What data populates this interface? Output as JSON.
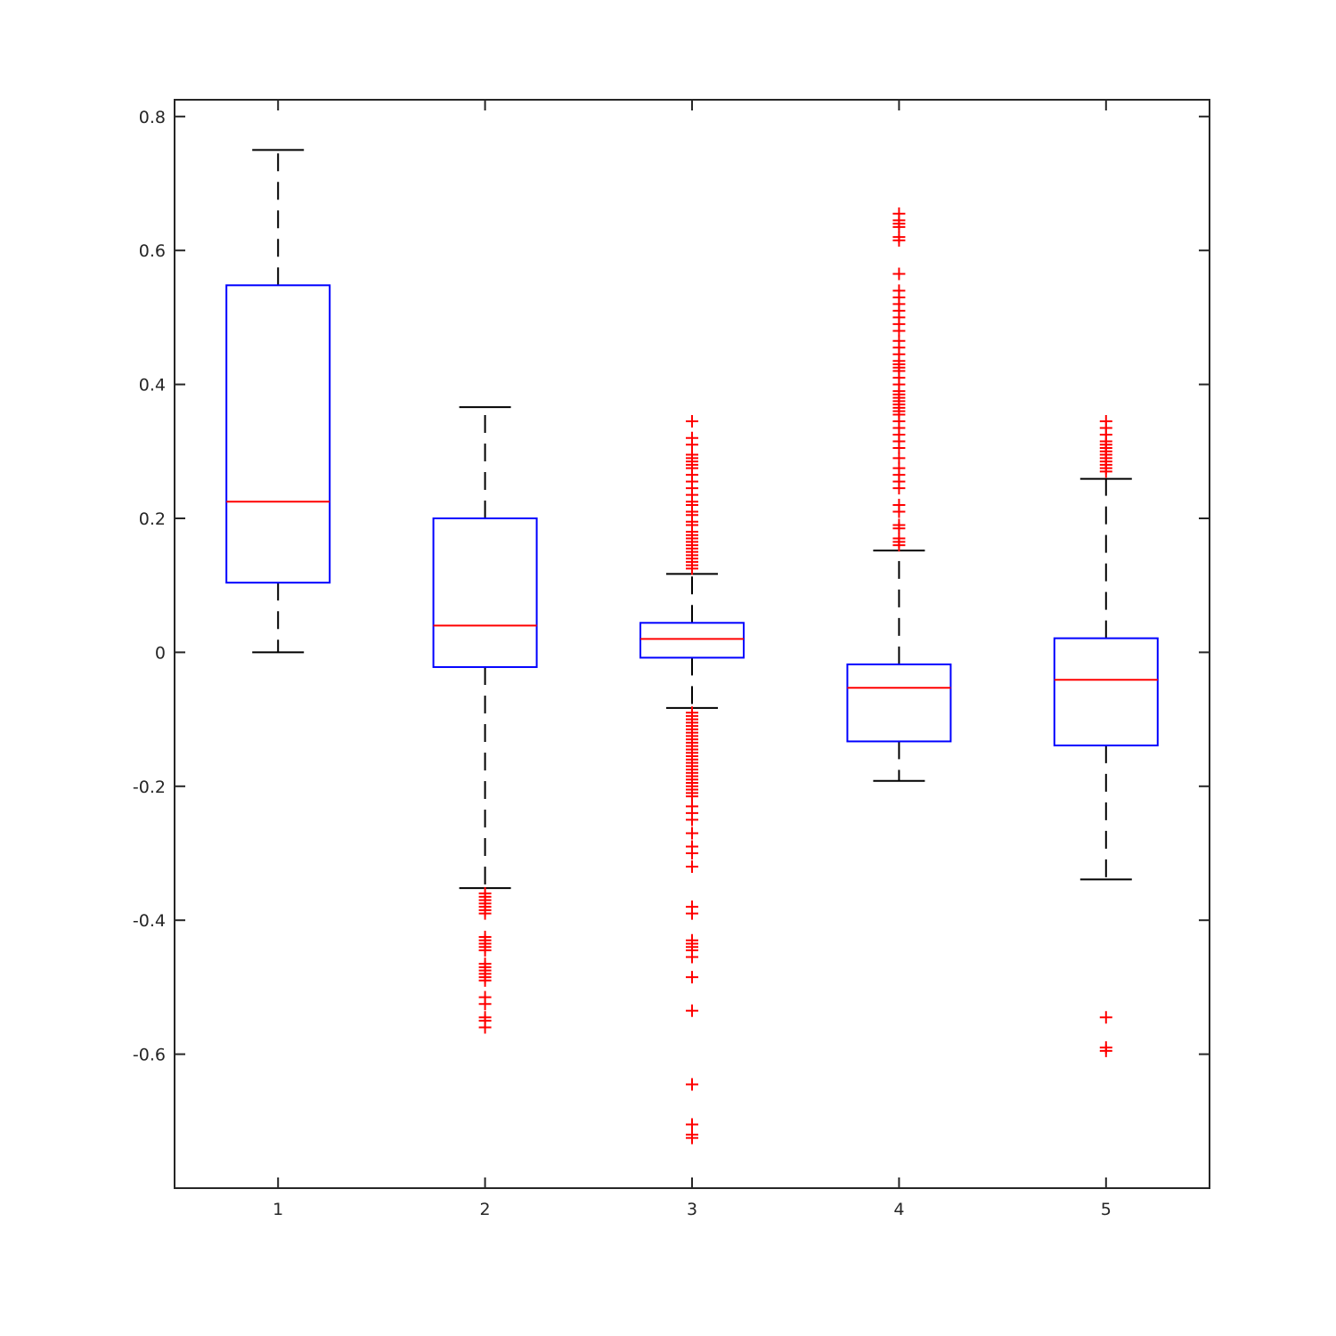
{
  "chart_data": {
    "type": "boxplot",
    "title": "",
    "xlabel": "",
    "ylabel": "",
    "categories": [
      "1",
      "2",
      "3",
      "4",
      "5"
    ],
    "xlim": [
      0.5,
      5.5
    ],
    "ylim": [
      -0.8,
      0.825
    ],
    "y_ticks": [
      -0.6,
      -0.4,
      -0.2,
      0,
      0.2,
      0.4,
      0.6,
      0.8
    ],
    "y_tick_labels": [
      "-0.6",
      "-0.4",
      "-0.2",
      "0",
      "0.2",
      "0.4",
      "0.6",
      "0.8"
    ],
    "grid": false,
    "colors": {
      "box": "#0000ff",
      "median": "#ff0000",
      "whisker": "#000000",
      "outlier": "#ff0000",
      "axis": "#262626"
    },
    "boxes": [
      {
        "label": "1",
        "whisker_low": 0.0,
        "q1": 0.104,
        "median": 0.225,
        "q3": 0.548,
        "whisker_high": 0.75,
        "outliers": []
      },
      {
        "label": "2",
        "whisker_low": -0.352,
        "q1": -0.022,
        "median": 0.04,
        "q3": 0.2,
        "whisker_high": 0.366,
        "outliers": [
          -0.36,
          -0.365,
          -0.37,
          -0.375,
          -0.38,
          -0.385,
          -0.39,
          -0.425,
          -0.43,
          -0.435,
          -0.44,
          -0.445,
          -0.465,
          -0.47,
          -0.475,
          -0.48,
          -0.485,
          -0.49,
          -0.515,
          -0.525,
          -0.545,
          -0.55,
          -0.56
        ]
      },
      {
        "label": "3",
        "whisker_low": -0.083,
        "q1": -0.008,
        "median": 0.02,
        "q3": 0.044,
        "whisker_high": 0.117,
        "outliers": [
          0.345,
          0.32,
          0.31,
          0.295,
          0.29,
          0.285,
          0.28,
          0.275,
          0.265,
          0.255,
          0.245,
          0.235,
          0.225,
          0.22,
          0.21,
          0.205,
          0.195,
          0.19,
          0.18,
          0.175,
          0.17,
          0.165,
          0.16,
          0.155,
          0.15,
          0.145,
          0.14,
          0.135,
          0.13,
          0.125,
          -0.09,
          -0.095,
          -0.1,
          -0.105,
          -0.11,
          -0.115,
          -0.12,
          -0.125,
          -0.13,
          -0.135,
          -0.14,
          -0.145,
          -0.15,
          -0.155,
          -0.16,
          -0.165,
          -0.17,
          -0.175,
          -0.18,
          -0.185,
          -0.19,
          -0.195,
          -0.2,
          -0.205,
          -0.21,
          -0.215,
          -0.23,
          -0.24,
          -0.25,
          -0.27,
          -0.29,
          -0.3,
          -0.32,
          -0.38,
          -0.39,
          -0.43,
          -0.435,
          -0.44,
          -0.445,
          -0.455,
          -0.485,
          -0.535,
          -0.645,
          -0.705,
          -0.72,
          -0.725
        ]
      },
      {
        "label": "4",
        "whisker_low": -0.192,
        "q1": -0.133,
        "median": -0.053,
        "q3": -0.018,
        "whisker_high": 0.152,
        "outliers": [
          0.655,
          0.645,
          0.64,
          0.635,
          0.62,
          0.615,
          0.565,
          0.54,
          0.53,
          0.52,
          0.51,
          0.5,
          0.49,
          0.48,
          0.465,
          0.455,
          0.445,
          0.435,
          0.43,
          0.425,
          0.42,
          0.41,
          0.4,
          0.39,
          0.385,
          0.38,
          0.375,
          0.37,
          0.365,
          0.36,
          0.355,
          0.345,
          0.335,
          0.325,
          0.315,
          0.305,
          0.29,
          0.275,
          0.265,
          0.255,
          0.245,
          0.22,
          0.21,
          0.19,
          0.185,
          0.17,
          0.165,
          0.16
        ]
      },
      {
        "label": "5",
        "whisker_low": -0.339,
        "q1": -0.139,
        "median": -0.041,
        "q3": 0.021,
        "whisker_high": 0.259,
        "outliers": [
          0.345,
          0.335,
          0.325,
          0.315,
          0.31,
          0.305,
          0.3,
          0.295,
          0.29,
          0.285,
          0.28,
          0.275,
          0.27,
          -0.545,
          -0.59,
          -0.595
        ]
      }
    ]
  }
}
